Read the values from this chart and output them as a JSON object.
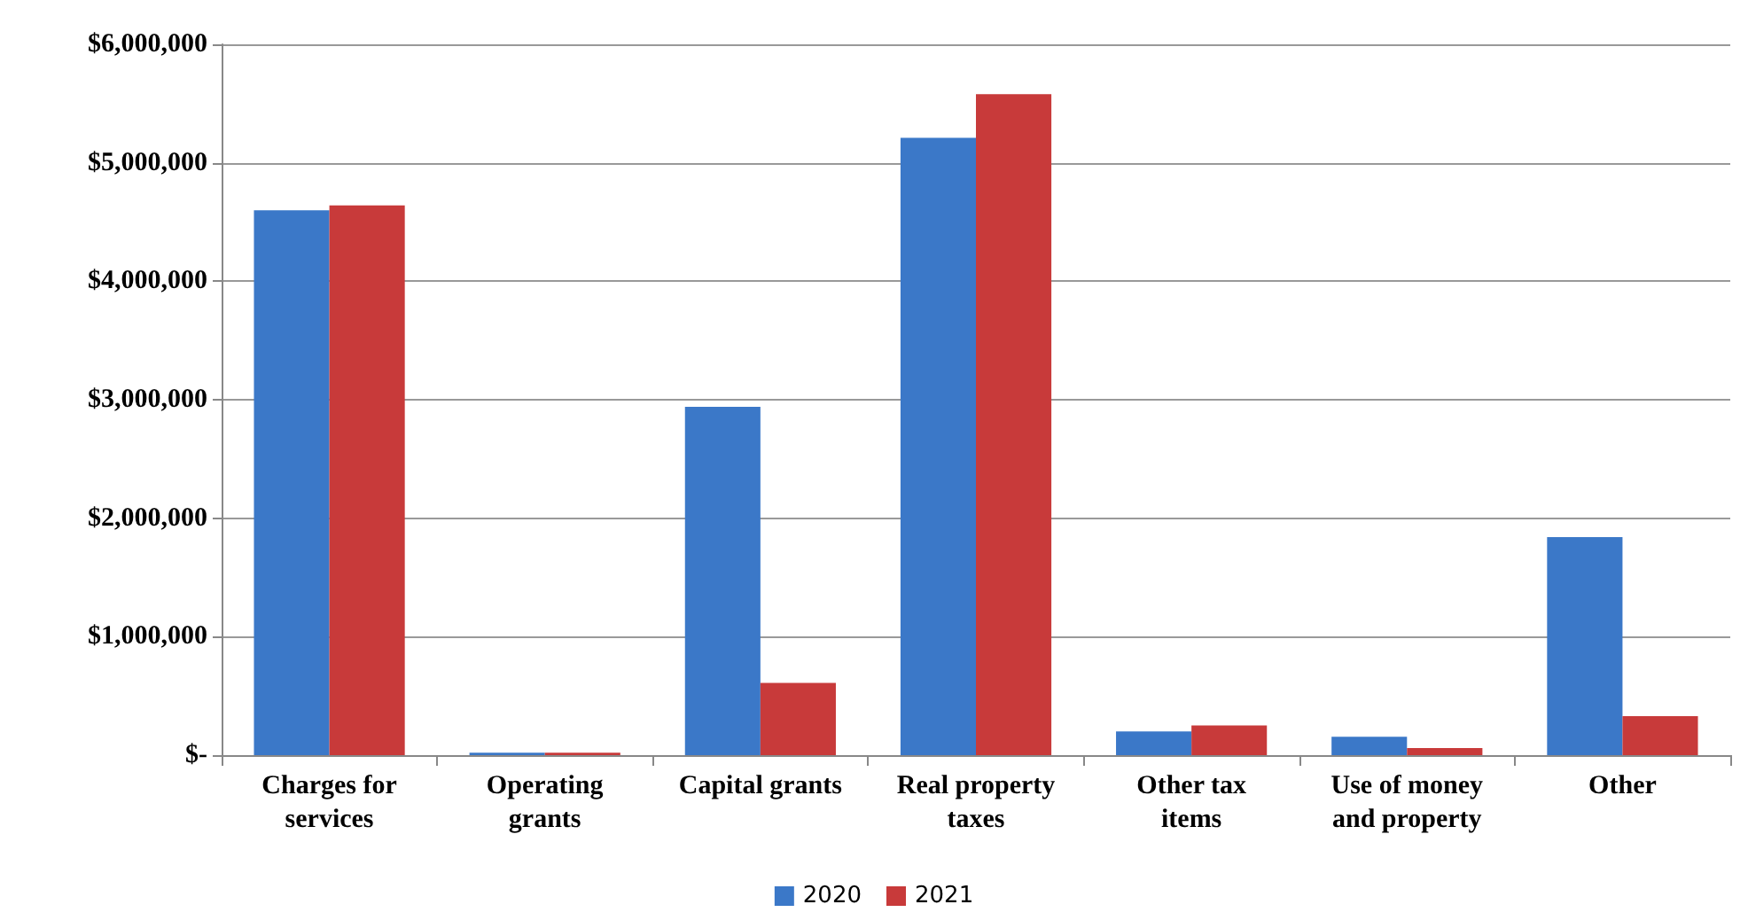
{
  "chart_data": {
    "type": "bar",
    "categories": [
      "Charges for\nservices",
      "Operating\ngrants",
      "Capital grants",
      "Real property\ntaxes",
      "Other tax\nitems",
      "Use of money\nand property",
      "Other"
    ],
    "series": [
      {
        "name": "2020",
        "color": "#3b78c8",
        "values": [
          4600000,
          20000,
          2940000,
          5210000,
          200000,
          155000,
          1840000
        ]
      },
      {
        "name": "2021",
        "color": "#c83a3a",
        "values": [
          4640000,
          20000,
          610000,
          5580000,
          250000,
          60000,
          330000
        ]
      }
    ],
    "ylim": [
      0,
      6000000
    ],
    "yticks": [
      {
        "value": 0,
        "label": "$-"
      },
      {
        "value": 1000000,
        "label": "$1,000,000"
      },
      {
        "value": 2000000,
        "label": "$2,000,000"
      },
      {
        "value": 3000000,
        "label": "$3,000,000"
      },
      {
        "value": 4000000,
        "label": "$4,000,000"
      },
      {
        "value": 5000000,
        "label": "$5,000,000"
      },
      {
        "value": 6000000,
        "label": "$6,000,000"
      }
    ],
    "grid": "y",
    "legend": "bottom"
  }
}
